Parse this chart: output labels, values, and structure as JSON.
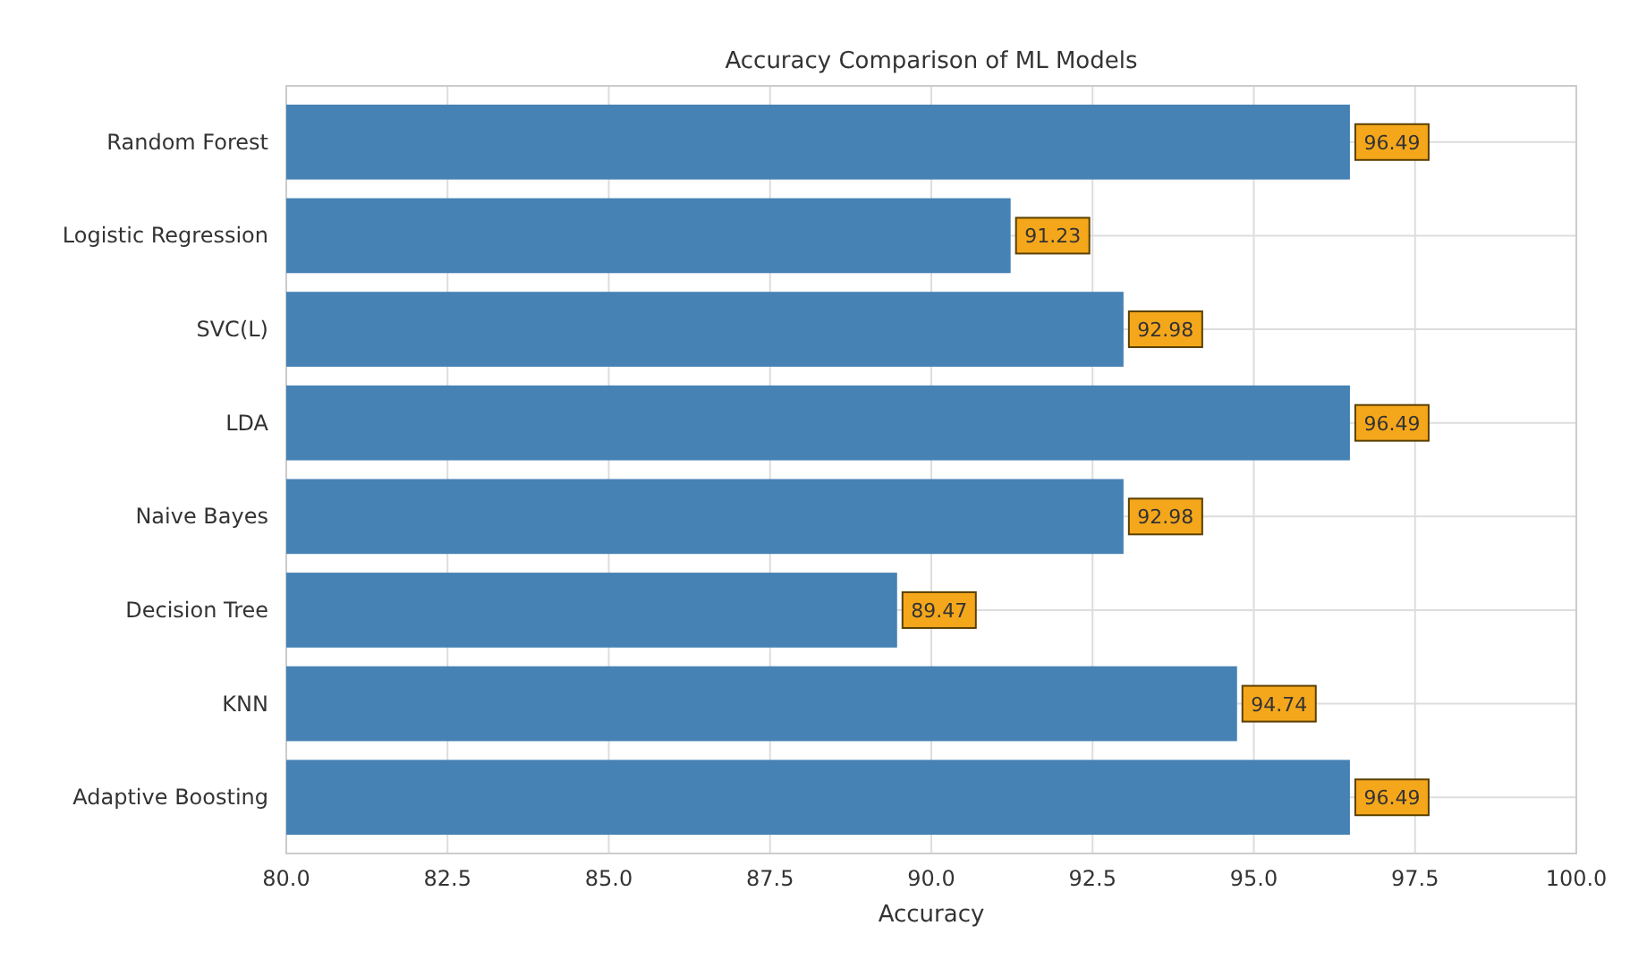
{
  "chart_data": {
    "type": "bar",
    "orientation": "horizontal",
    "title": "Accuracy Comparison of ML Models",
    "xlabel": "Accuracy",
    "categories": [
      "Random Forest",
      "Logistic Regression",
      "SVC(L)",
      "LDA",
      "Naive Bayes",
      "Decision Tree",
      "KNN",
      "Adaptive Boosting"
    ],
    "values": [
      96.49,
      91.23,
      92.98,
      96.49,
      92.98,
      89.47,
      94.74,
      96.49
    ],
    "color": "#4682b4",
    "xlim": [
      80,
      100
    ],
    "xticks": [
      {
        "value": 80,
        "label": "80.0"
      },
      {
        "value": 82.5,
        "label": "82.5"
      },
      {
        "value": 85,
        "label": "85.0"
      },
      {
        "value": 87.5,
        "label": "87.5"
      },
      {
        "value": 90,
        "label": "90.0"
      },
      {
        "value": 92.5,
        "label": "92.5"
      },
      {
        "value": 95,
        "label": "95.0"
      },
      {
        "value": 97.5,
        "label": "97.5"
      },
      {
        "value": 100,
        "label": "100.0"
      }
    ],
    "grid": true,
    "data_labels": true
  }
}
